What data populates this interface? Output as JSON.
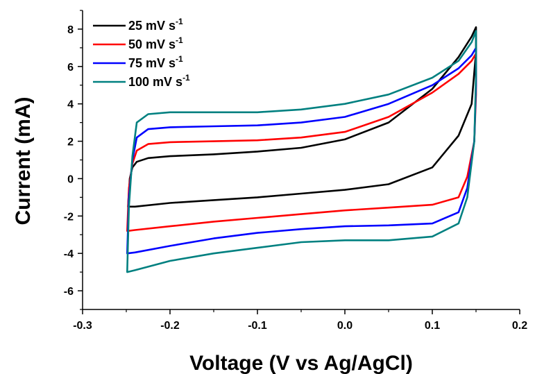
{
  "chart_data": {
    "type": "line",
    "xlabel": "Voltage (V vs Ag/AgCl)",
    "ylabel": "Current (mA)",
    "xlim": [
      -0.3,
      0.2
    ],
    "ylim": [
      -7,
      9
    ],
    "xticks": [
      -0.3,
      -0.2,
      -0.1,
      0.0,
      0.1,
      0.2
    ],
    "xtick_labels": [
      "-0.3",
      "-0.2",
      "-0.1",
      "0.0",
      "0.1",
      "0.2"
    ],
    "yticks": [
      -6,
      -4,
      -2,
      0,
      2,
      4,
      6,
      8
    ],
    "ytick_labels": [
      "-6",
      "-4",
      "-2",
      "0",
      "2",
      "4",
      "6",
      "8"
    ],
    "grid": false,
    "legend_position": "top-left",
    "series": [
      {
        "name": "25 mV s",
        "superscript": "-1",
        "color": "#000000",
        "x": [
          -0.248,
          -0.246,
          -0.243,
          -0.238,
          -0.225,
          -0.2,
          -0.15,
          -0.1,
          -0.05,
          0.0,
          0.05,
          0.1,
          0.13,
          0.145,
          0.15,
          0.15,
          0.145,
          0.13,
          0.1,
          0.05,
          0.0,
          -0.05,
          -0.1,
          -0.15,
          -0.2,
          -0.24,
          -0.248
        ],
        "y": [
          -1.5,
          0.0,
          0.6,
          0.9,
          1.1,
          1.2,
          1.3,
          1.45,
          1.65,
          2.1,
          3.0,
          4.8,
          6.5,
          7.6,
          8.1,
          6.8,
          4.0,
          2.3,
          0.6,
          -0.3,
          -0.6,
          -0.8,
          -1.0,
          -1.15,
          -1.3,
          -1.5,
          -1.5
        ]
      },
      {
        "name": "50 mV s",
        "superscript": "-1",
        "color": "#ff0000",
        "x": [
          -0.249,
          -0.247,
          -0.243,
          -0.238,
          -0.225,
          -0.2,
          -0.15,
          -0.1,
          -0.05,
          0.0,
          0.05,
          0.1,
          0.13,
          0.145,
          0.15,
          0.15,
          0.148,
          0.14,
          0.13,
          0.1,
          0.05,
          0.0,
          -0.05,
          -0.1,
          -0.15,
          -0.2,
          -0.24,
          -0.249
        ],
        "y": [
          -2.8,
          -0.5,
          0.8,
          1.5,
          1.85,
          1.95,
          2.0,
          2.05,
          2.2,
          2.5,
          3.3,
          4.6,
          5.6,
          6.3,
          6.7,
          4.5,
          2.0,
          0.1,
          -1.0,
          -1.4,
          -1.55,
          -1.7,
          -1.9,
          -2.1,
          -2.3,
          -2.55,
          -2.75,
          -2.8
        ]
      },
      {
        "name": "75 mV s",
        "superscript": "-1",
        "color": "#0000ff",
        "x": [
          -0.249,
          -0.247,
          -0.243,
          -0.238,
          -0.225,
          -0.2,
          -0.15,
          -0.1,
          -0.05,
          0.0,
          0.05,
          0.1,
          0.13,
          0.145,
          0.15,
          0.15,
          0.148,
          0.14,
          0.13,
          0.1,
          0.05,
          0.0,
          -0.05,
          -0.1,
          -0.15,
          -0.2,
          -0.24,
          -0.249
        ],
        "y": [
          -4.0,
          -1.0,
          1.0,
          2.2,
          2.65,
          2.75,
          2.8,
          2.85,
          3.0,
          3.3,
          4.0,
          5.0,
          5.9,
          6.6,
          7.0,
          5.0,
          2.0,
          -0.5,
          -1.8,
          -2.4,
          -2.5,
          -2.55,
          -2.7,
          -2.9,
          -3.2,
          -3.6,
          -3.95,
          -4.0
        ]
      },
      {
        "name": "100 mV s",
        "superscript": "-1",
        "color": "#008080",
        "x": [
          -0.249,
          -0.247,
          -0.243,
          -0.238,
          -0.225,
          -0.2,
          -0.15,
          -0.1,
          -0.05,
          0.0,
          0.05,
          0.1,
          0.13,
          0.145,
          0.15,
          0.15,
          0.148,
          0.14,
          0.13,
          0.1,
          0.05,
          0.0,
          -0.05,
          -0.1,
          -0.15,
          -0.2,
          -0.24,
          -0.249
        ],
        "y": [
          -5.0,
          -1.5,
          1.2,
          3.0,
          3.45,
          3.55,
          3.55,
          3.55,
          3.7,
          4.0,
          4.5,
          5.4,
          6.3,
          7.3,
          7.9,
          5.5,
          2.0,
          -1.0,
          -2.4,
          -3.1,
          -3.3,
          -3.3,
          -3.4,
          -3.7,
          -4.0,
          -4.4,
          -4.9,
          -5.0
        ]
      }
    ]
  }
}
